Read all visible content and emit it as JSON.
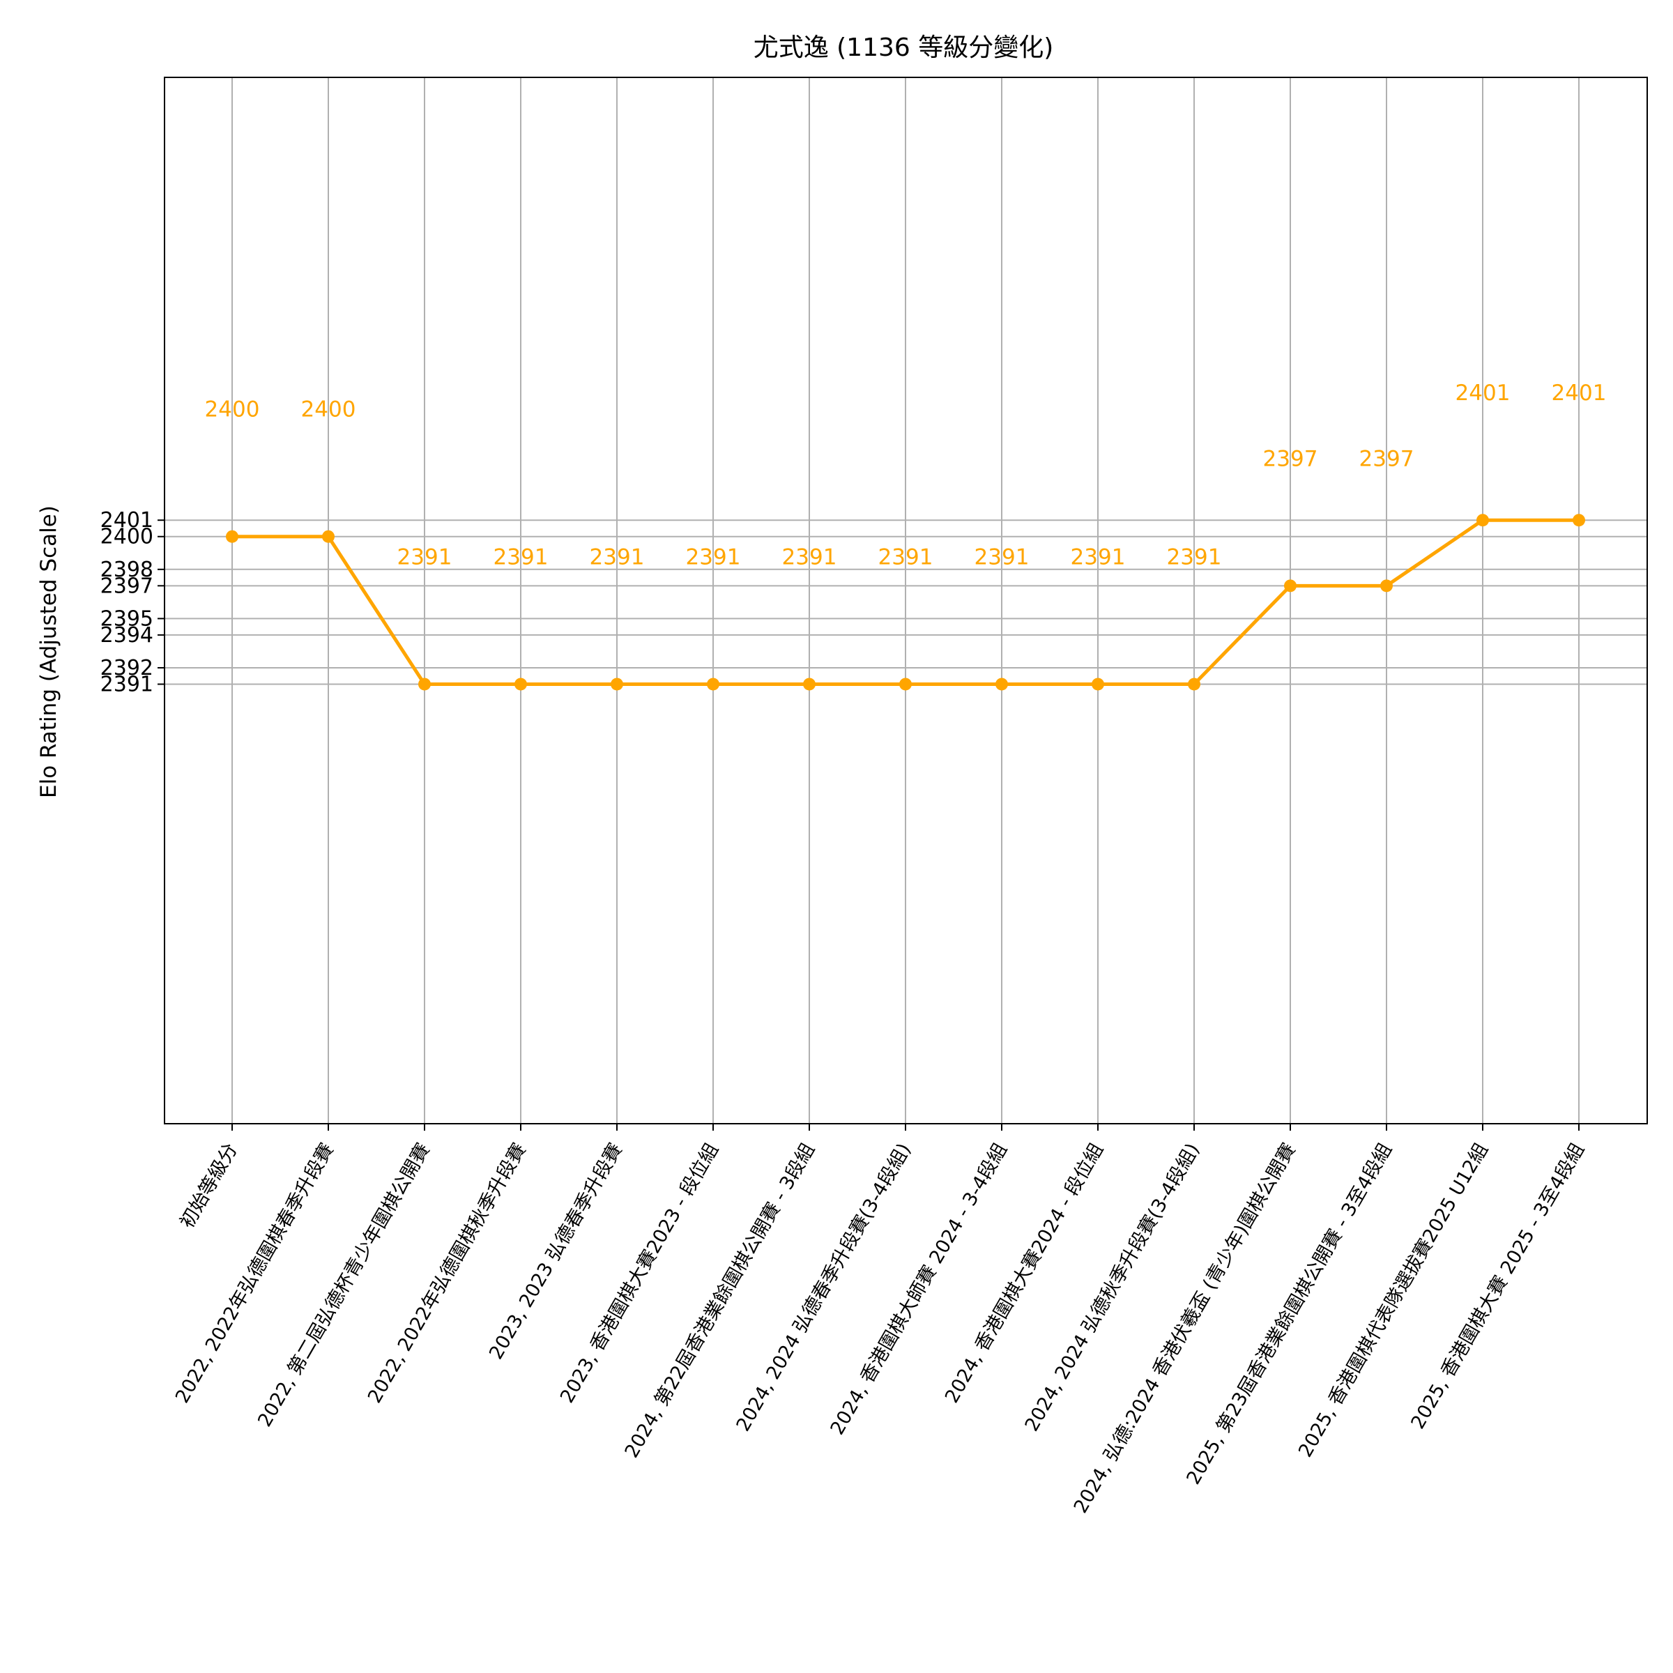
{
  "chart_data": {
    "type": "line",
    "title": "尤式逸 (1136 等級分變化)",
    "xlabel": "",
    "ylabel": "Elo Rating (Adjusted Scale)",
    "categories": [
      "初始等級分",
      "2022, 2022年弘德圍棋春季升段賽",
      "2022, 第二屆弘德杯青少年圍棋公開賽",
      "2022, 2022年弘德圍棋秋季升段賽",
      "2023, 2023 弘德春季升段賽",
      "2023, 香港圍棋大賽2023 - 段位組",
      "2024, 第22屆香港業餘圍棋公開賽 - 3段組",
      "2024, 2024 弘德春季升段賽(3-4段組)",
      "2024, 香港圍棋大師賽 2024 - 3-4段組",
      "2024, 香港圍棋大賽2024 - 段位組",
      "2024, 2024 弘德秋季升段賽(3-4段組)",
      "2024, 弘德:2024 香港伏羲盃 (青少年)圍棋公開賽",
      "2025, 第23屆香港業餘圍棋公開賽 - 3至4段組",
      "2025, 香港圍棋代表隊選拔賽2025 U12組",
      "2025, 香港圍棋大賽 2025 - 3至4段組"
    ],
    "series": [
      {
        "values": [
          2400,
          2400,
          2391,
          2391,
          2391,
          2391,
          2391,
          2391,
          2391,
          2391,
          2391,
          2397,
          2397,
          2401,
          2401
        ],
        "labels": [
          "2400",
          "2400",
          "2391",
          "2391",
          "2391",
          "2391",
          "2391",
          "2391",
          "2391",
          "2391",
          "2391",
          "2397",
          "2397",
          "2401",
          "2401"
        ],
        "color": "#ffa500"
      }
    ],
    "yticks": [
      2391,
      2392,
      2394,
      2395,
      2397,
      2398,
      2400,
      2401
    ],
    "ylim": [
      2364.2,
      2428
    ],
    "grid": true,
    "line_color": "#ffa500",
    "grid_color": "#b0b0b0"
  }
}
